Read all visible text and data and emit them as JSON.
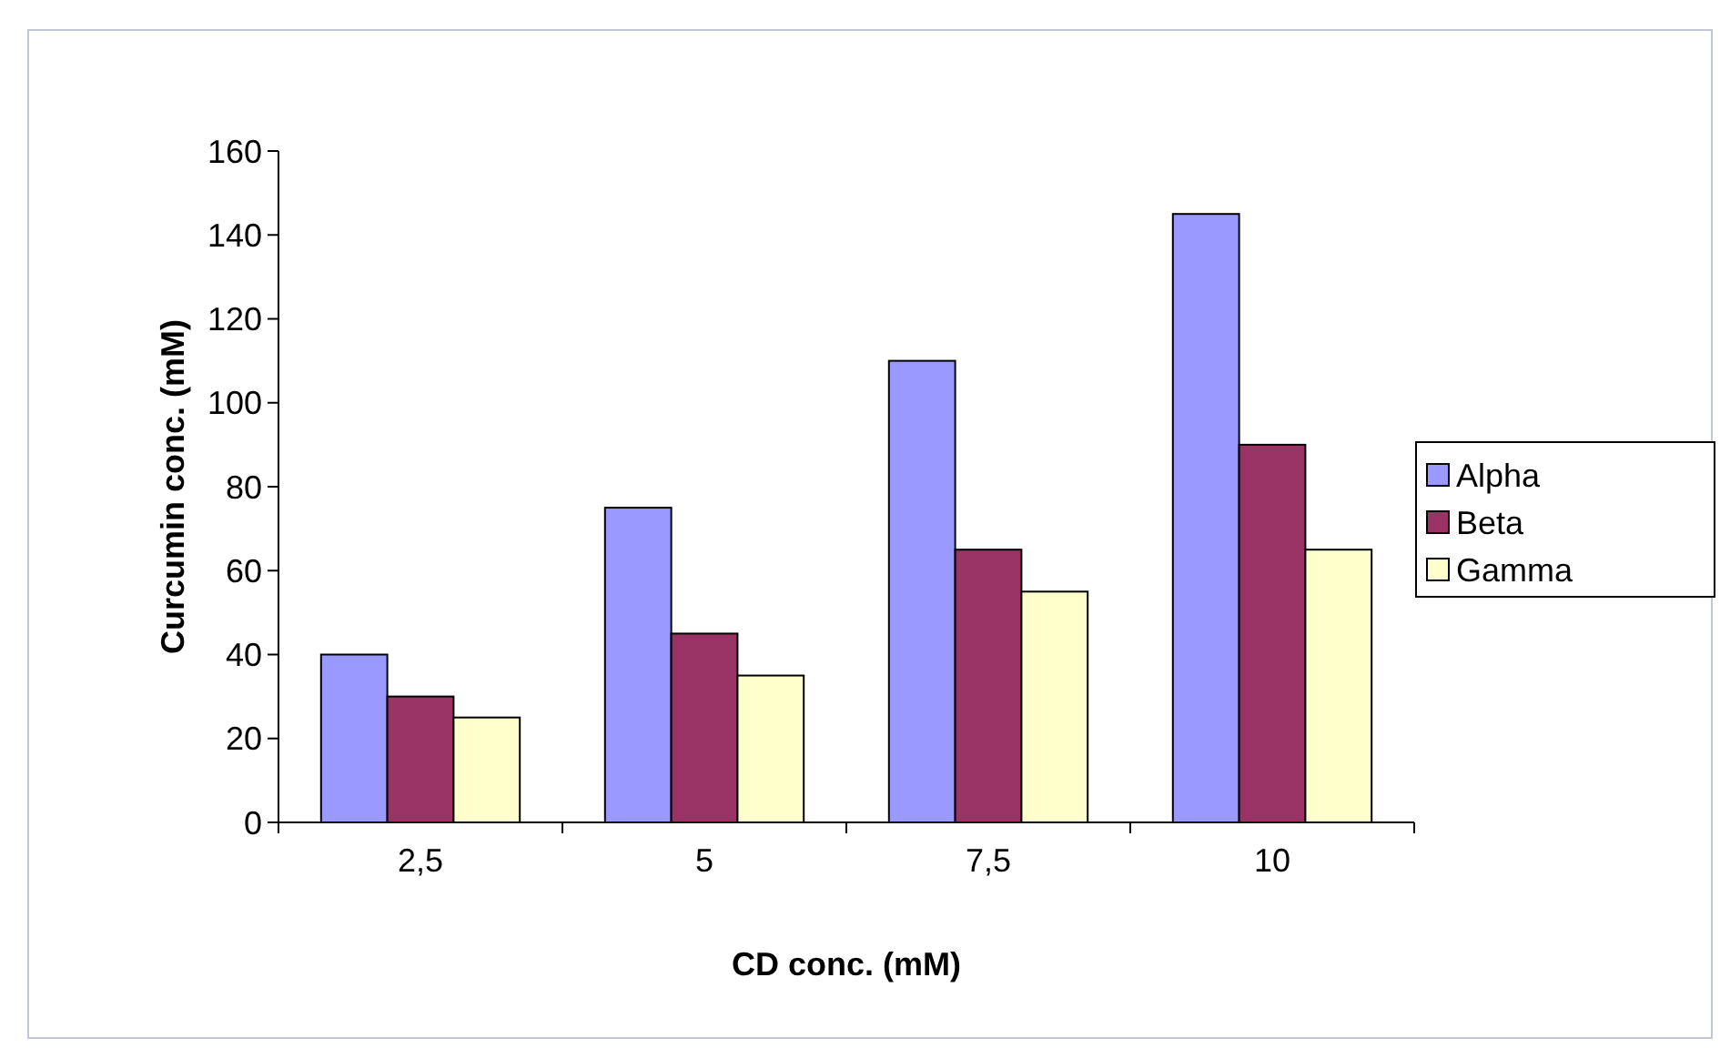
{
  "chart_data": {
    "type": "bar",
    "xlabel": "CD conc. (mM)",
    "ylabel": "Curcumin conc. (mM)",
    "categories": [
      "2,5",
      "5",
      "7,5",
      "10"
    ],
    "series": [
      {
        "name": "Alpha",
        "color": "#9999ff",
        "values": [
          40,
          75,
          110,
          145
        ]
      },
      {
        "name": "Beta",
        "color": "#993366",
        "values": [
          30,
          45,
          65,
          90
        ]
      },
      {
        "name": "Gamma",
        "color": "#ffffcc",
        "values": [
          25,
          35,
          55,
          65
        ]
      }
    ],
    "ylim": [
      0,
      160
    ],
    "yticks": [
      0,
      20,
      40,
      60,
      80,
      100,
      120,
      140,
      160
    ],
    "grid": false,
    "legend": "right"
  }
}
